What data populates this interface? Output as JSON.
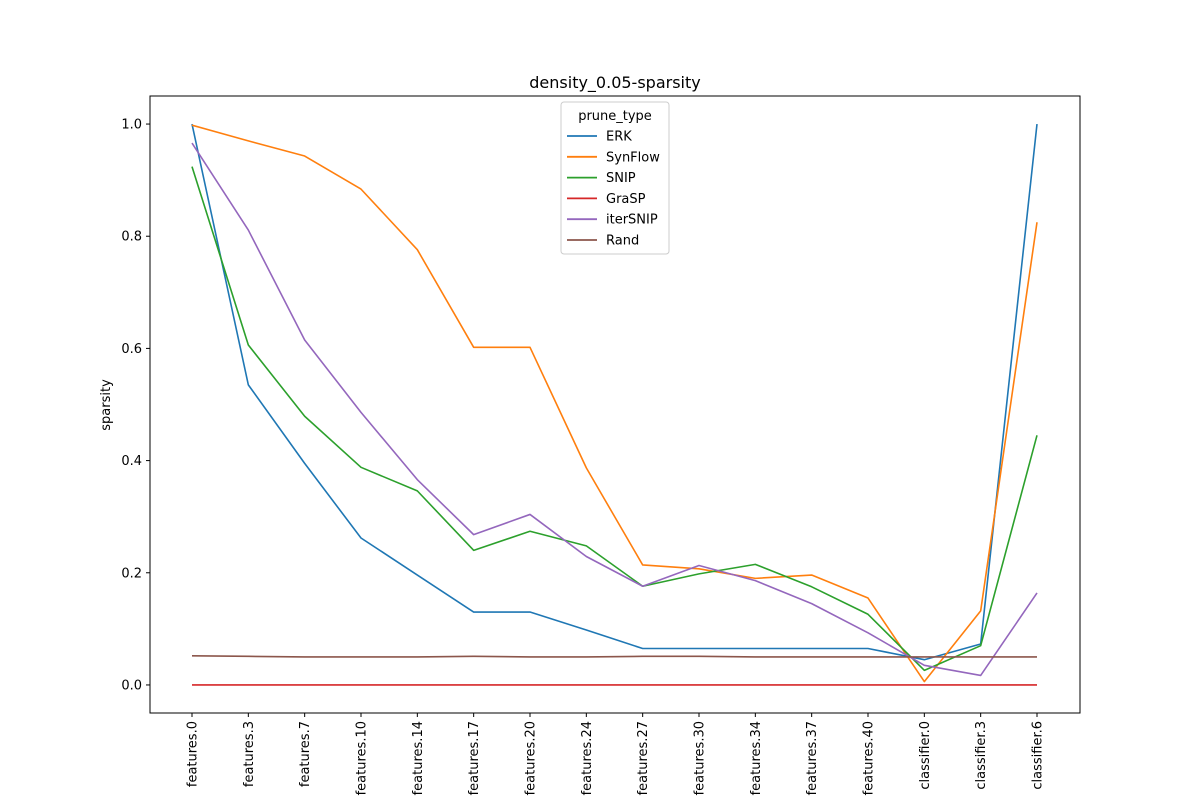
{
  "chart_data": {
    "type": "line",
    "title": "density_0.05-sparsity",
    "xlabel": "",
    "ylabel": "sparsity",
    "ylim": [
      -0.05,
      1.05
    ],
    "yticks": [
      "0.0",
      "0.2",
      "0.4",
      "0.6",
      "0.8",
      "1.0"
    ],
    "grid": false,
    "legend": {
      "title": "prune_type",
      "placement": "top-center"
    },
    "categories": [
      "features.0",
      "features.3",
      "features.7",
      "features.10",
      "features.14",
      "features.17",
      "features.20",
      "features.24",
      "features.27",
      "features.30",
      "features.34",
      "features.37",
      "features.40",
      "classifier.0",
      "classifier.3",
      "classifier.6"
    ],
    "series": [
      {
        "name": "ERK",
        "color": "#1f77b4",
        "values": [
          1.0,
          0.535,
          0.395,
          0.262,
          0.196,
          0.13,
          0.13,
          0.098,
          0.065,
          0.065,
          0.065,
          0.065,
          0.065,
          0.045,
          0.073,
          1.0
        ]
      },
      {
        "name": "SynFlow",
        "color": "#ff7f0e",
        "values": [
          0.998,
          0.97,
          0.943,
          0.884,
          0.776,
          0.602,
          0.602,
          0.387,
          0.214,
          0.207,
          0.19,
          0.196,
          0.155,
          0.006,
          0.132,
          0.825
        ]
      },
      {
        "name": "SNIP",
        "color": "#2ca02c",
        "values": [
          0.924,
          0.606,
          0.479,
          0.388,
          0.346,
          0.24,
          0.274,
          0.248,
          0.176,
          0.198,
          0.215,
          0.175,
          0.126,
          0.026,
          0.07,
          0.445
        ]
      },
      {
        "name": "GraSP",
        "color": "#d62728",
        "values": [
          0.0,
          0.0,
          0.0,
          0.0,
          0.0,
          0.0,
          0.0,
          0.0,
          0.0,
          0.0,
          0.0,
          0.0,
          0.0,
          0.0,
          0.0,
          0.0
        ]
      },
      {
        "name": "iterSNIP",
        "color": "#9467bd",
        "values": [
          0.966,
          0.811,
          0.615,
          0.486,
          0.366,
          0.268,
          0.304,
          0.229,
          0.176,
          0.213,
          0.186,
          0.145,
          0.093,
          0.035,
          0.017,
          0.164
        ]
      },
      {
        "name": "Rand",
        "color": "#8c564b",
        "values": [
          0.052,
          0.051,
          0.05,
          0.05,
          0.05,
          0.051,
          0.05,
          0.05,
          0.051,
          0.051,
          0.05,
          0.05,
          0.05,
          0.05,
          0.05,
          0.05
        ]
      }
    ]
  }
}
